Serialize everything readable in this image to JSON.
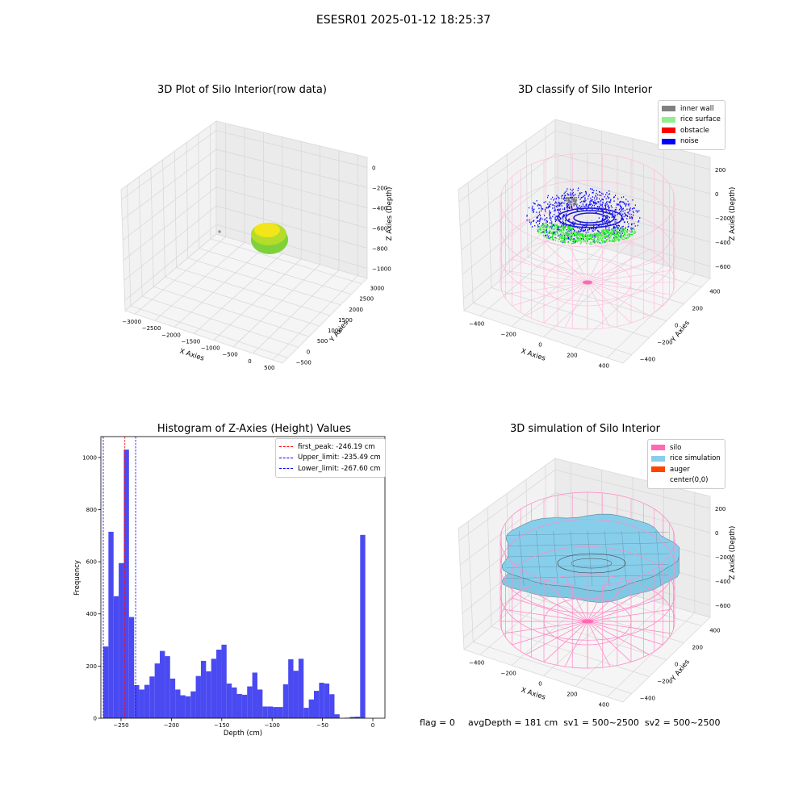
{
  "suptitle": "ESESR01 2025-01-12 18:25:37",
  "footer": {
    "flag": "flag = 0",
    "avg": "avgDepth = 181 cm  sv1 = 500~2500  sv2 = 500~2500"
  },
  "plot1": {
    "title": "3D Plot of Silo Interior(row data)",
    "xlabel": "X Axies",
    "ylabel": "Y Axies",
    "zlabel": "Z Axies (Depth)",
    "xticks": [
      "−3000",
      "−2500",
      "−2000",
      "−1500",
      "−1000",
      "−500",
      "0",
      "500"
    ],
    "yticks": [
      "−500",
      "0",
      "500",
      "1000",
      "1500",
      "2000",
      "2500",
      "3000"
    ],
    "zticks": [
      "0",
      "−200",
      "−400",
      "−600",
      "−800",
      "−1000"
    ],
    "colors": {
      "blob_top": "#f2e51a",
      "blob_bottom": "#7ed13a"
    }
  },
  "plot2": {
    "title": "3D classify of Silo Interior",
    "xlabel": "X Axies",
    "ylabel": "Y Axies",
    "zlabel": "Z Axies (Depth)",
    "xticks": [
      "−400",
      "−200",
      "0",
      "200",
      "400"
    ],
    "yticks": [
      "−400",
      "−200",
      "0",
      "200",
      "400"
    ],
    "zticks": [
      "200",
      "0",
      "−200",
      "−400",
      "−600"
    ],
    "legend": [
      {
        "label": "inner wall",
        "color": "#808080"
      },
      {
        "label": "rice surface",
        "color": "#90ee90"
      },
      {
        "label": "obstacle",
        "color": "#ff0000"
      },
      {
        "label": "noise",
        "color": "#0000ff"
      }
    ]
  },
  "plot3": {
    "chart_data": {
      "type": "bar",
      "title": "Histogram of Z-Axies (Height) Values",
      "xlabel": "Depth (cm)",
      "ylabel": "Frequency",
      "xlim": [
        -270,
        12
      ],
      "ylim": [
        0,
        1080
      ],
      "bin_start": -267.6,
      "bin_width": 5.1,
      "values": [
        275,
        715,
        468,
        595,
        1030,
        388,
        127,
        110,
        128,
        160,
        210,
        258,
        238,
        152,
        110,
        88,
        84,
        103,
        162,
        220,
        180,
        228,
        263,
        282,
        133,
        118,
        93,
        90,
        122,
        175,
        110,
        45,
        45,
        43,
        43,
        130,
        226,
        182,
        228,
        40,
        72,
        105,
        136,
        133,
        92,
        15,
        0,
        2,
        5,
        6,
        703
      ],
      "xticks": [
        -250,
        -200,
        -150,
        -100,
        -50,
        0
      ],
      "xtick_labels": [
        "−250",
        "−200",
        "−150",
        "−100",
        "−50",
        "0"
      ],
      "yticks": [
        0,
        200,
        400,
        600,
        800,
        1000
      ],
      "bar_color": "#4a4af2",
      "vlines": [
        {
          "label": "first_peak: -246.19 cm",
          "x": -246.19,
          "color": "#ff0000"
        },
        {
          "label": "Upper_limit: -235.49 cm",
          "x": -235.49,
          "color": "#0000ff"
        },
        {
          "label": "Lower_limit: -267.60 cm",
          "x": -267.6,
          "color": "#0000ff"
        }
      ],
      "legend_position": "upper right"
    }
  },
  "plot4": {
    "title": "3D simulation of Silo Interior",
    "xlabel": "X Axies",
    "ylabel": "Y Axies",
    "zlabel": "Z Axies (Depth)",
    "xticks": [
      "−400",
      "−200",
      "0",
      "200",
      "400"
    ],
    "yticks": [
      "−400",
      "−200",
      "0",
      "200",
      "400"
    ],
    "zticks": [
      "200",
      "0",
      "−200",
      "−400",
      "−600"
    ],
    "legend": [
      {
        "label": "silo",
        "color": "#ff69b4"
      },
      {
        "label": "rice simulation",
        "color": "#87ceeb"
      },
      {
        "label": "auger",
        "color": "#ff4500"
      },
      {
        "label": "center(0,0)",
        "color": "#ffffff"
      }
    ]
  }
}
